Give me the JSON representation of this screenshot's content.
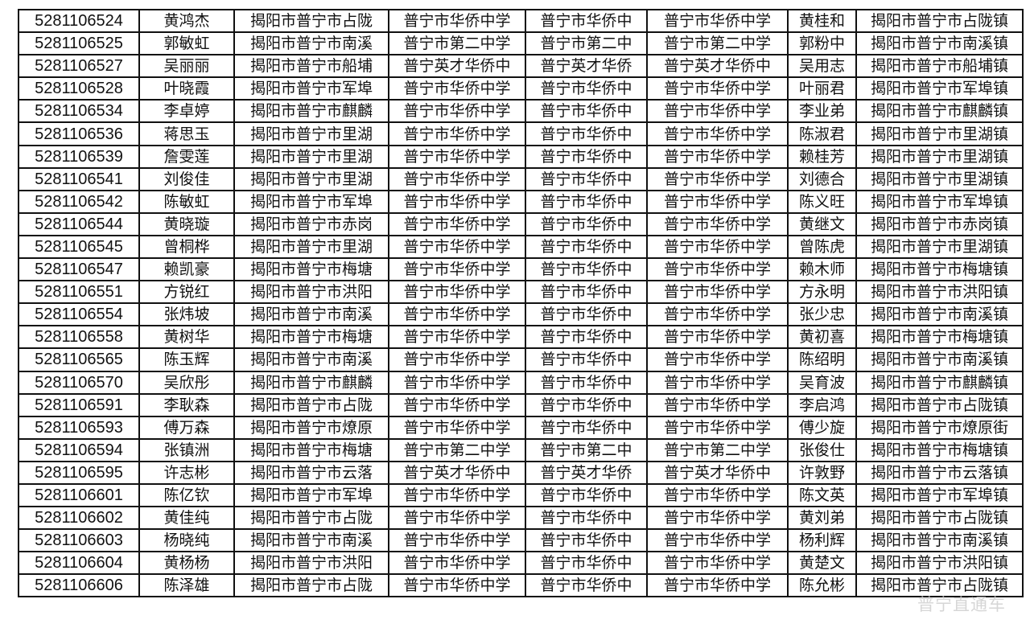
{
  "rows": [
    [
      "5281106524",
      "黄鸿杰",
      "揭阳市普宁市占陇",
      "普宁市华侨中学",
      "普宁市华侨中",
      "普宁市华侨中学",
      "黄桂和",
      "揭阳市普宁市占陇镇"
    ],
    [
      "5281106525",
      "郭敏虹",
      "揭阳市普宁市南溪",
      "普宁市第二中学",
      "普宁市第二中",
      "普宁市第二中学",
      "郭粉中",
      "揭阳市普宁市南溪镇"
    ],
    [
      "5281106527",
      "吴丽丽",
      "揭阳市普宁市船埔",
      "普宁英才华侨中",
      "普宁英才华侨",
      "普宁英才华侨中",
      "吴用志",
      "揭阳市普宁市船埔镇"
    ],
    [
      "5281106528",
      "叶晓霞",
      "揭阳市普宁市军埠",
      "普宁市华侨中学",
      "普宁市华侨中",
      "普宁市华侨中学",
      "叶丽君",
      "揭阳市普宁市军埠镇"
    ],
    [
      "5281106534",
      "李卓婷",
      "揭阳市普宁市麒麟",
      "普宁市华侨中学",
      "普宁市华侨中",
      "普宁市华侨中学",
      "李业弟",
      "揭阳市普宁市麒麟镇"
    ],
    [
      "5281106536",
      "蒋思玉",
      "揭阳市普宁市里湖",
      "普宁市华侨中学",
      "普宁市华侨中",
      "普宁市华侨中学",
      "陈淑君",
      "揭阳市普宁市里湖镇"
    ],
    [
      "5281106539",
      "詹雯莲",
      "揭阳市普宁市里湖",
      "普宁市华侨中学",
      "普宁市华侨中",
      "普宁市华侨中学",
      "赖桂芳",
      "揭阳市普宁市里湖镇"
    ],
    [
      "5281106541",
      "刘俊佳",
      "揭阳市普宁市里湖",
      "普宁市华侨中学",
      "普宁市华侨中",
      "普宁市华侨中学",
      "刘德合",
      "揭阳市普宁市里湖镇"
    ],
    [
      "5281106542",
      "陈敏虹",
      "揭阳市普宁市军埠",
      "普宁市华侨中学",
      "普宁市华侨中",
      "普宁市华侨中学",
      "陈义旺",
      "揭阳市普宁市军埠镇"
    ],
    [
      "5281106544",
      "黄晓璇",
      "揭阳市普宁市赤岗",
      "普宁市华侨中学",
      "普宁市华侨中",
      "普宁市华侨中学",
      "黄继文",
      "揭阳市普宁市赤岗镇"
    ],
    [
      "5281106545",
      "曾桐桦",
      "揭阳市普宁市里湖",
      "普宁市华侨中学",
      "普宁市华侨中",
      "普宁市华侨中学",
      "曾陈虎",
      "揭阳市普宁市里湖镇"
    ],
    [
      "5281106547",
      "赖凯豪",
      "揭阳市普宁市梅塘",
      "普宁市华侨中学",
      "普宁市华侨中",
      "普宁市华侨中学",
      "赖木师",
      "揭阳市普宁市梅塘镇"
    ],
    [
      "5281106551",
      "方锐红",
      "揭阳市普宁市洪阳",
      "普宁市华侨中学",
      "普宁市华侨中",
      "普宁市华侨中学",
      "方永明",
      "揭阳市普宁市洪阳镇"
    ],
    [
      "5281106554",
      "张炜坡",
      "揭阳市普宁市南溪",
      "普宁市华侨中学",
      "普宁市华侨中",
      "普宁市华侨中学",
      "张少忠",
      "揭阳市普宁市南溪镇"
    ],
    [
      "5281106558",
      "黄树华",
      "揭阳市普宁市梅塘",
      "普宁市华侨中学",
      "普宁市华侨中",
      "普宁市华侨中学",
      "黄初喜",
      "揭阳市普宁市梅塘镇"
    ],
    [
      "5281106565",
      "陈玉辉",
      "揭阳市普宁市南溪",
      "普宁市华侨中学",
      "普宁市华侨中",
      "普宁市华侨中学",
      "陈绍明",
      "揭阳市普宁市南溪镇"
    ],
    [
      "5281106570",
      "吴欣彤",
      "揭阳市普宁市麒麟",
      "普宁市华侨中学",
      "普宁市华侨中",
      "普宁市华侨中学",
      "吴育波",
      "揭阳市普宁市麒麟镇"
    ],
    [
      "5281106591",
      "李耿森",
      "揭阳市普宁市占陇",
      "普宁市华侨中学",
      "普宁市华侨中",
      "普宁市华侨中学",
      "李启鸿",
      "揭阳市普宁市占陇镇"
    ],
    [
      "5281106593",
      "傅万森",
      "揭阳市普宁市燎原",
      "普宁市华侨中学",
      "普宁市华侨中",
      "普宁市华侨中学",
      "傅少旋",
      "揭阳市普宁市燎原街"
    ],
    [
      "5281106594",
      "张镇洲",
      "揭阳市普宁市梅塘",
      "普宁市第二中学",
      "普宁市第二中",
      "普宁市第二中学",
      "张俊仕",
      "揭阳市普宁市梅塘镇"
    ],
    [
      "5281106595",
      "许志彬",
      "揭阳市普宁市云落",
      "普宁英才华侨中",
      "普宁英才华侨",
      "普宁英才华侨中",
      "许敦野",
      "揭阳市普宁市云落镇"
    ],
    [
      "5281106601",
      "陈亿钦",
      "揭阳市普宁市军埠",
      "普宁市华侨中学",
      "普宁市华侨中",
      "普宁市华侨中学",
      "陈文英",
      "揭阳市普宁市军埠镇"
    ],
    [
      "5281106602",
      "黄佳纯",
      "揭阳市普宁市占陇",
      "普宁市华侨中学",
      "普宁市华侨中",
      "普宁市华侨中学",
      "黄刘弟",
      "揭阳市普宁市占陇镇"
    ],
    [
      "5281106603",
      "杨晓纯",
      "揭阳市普宁市南溪",
      "普宁市华侨中学",
      "普宁市华侨中",
      "普宁市华侨中学",
      "杨利辉",
      "揭阳市普宁市南溪镇"
    ],
    [
      "5281106604",
      "黄杨杨",
      "揭阳市普宁市洪阳",
      "普宁市华侨中学",
      "普宁市华侨中",
      "普宁市华侨中学",
      "黄楚文",
      "揭阳市普宁市洪阳镇"
    ],
    [
      "5281106606",
      "陈泽雄",
      "揭阳市普宁市占陇",
      "普宁市华侨中学",
      "普宁市华侨中",
      "普宁市华侨中学",
      "陈允彬",
      "揭阳市普宁市占陇镇"
    ]
  ],
  "watermark": "普宁直通车"
}
